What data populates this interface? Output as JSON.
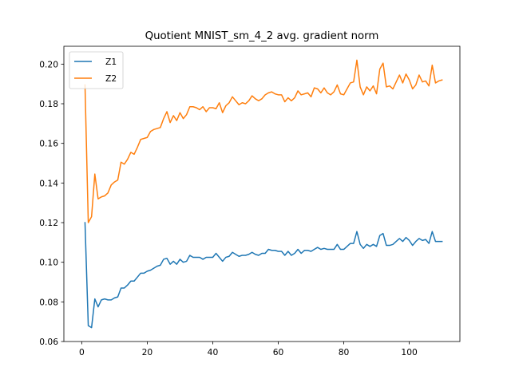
{
  "chart_data": {
    "type": "line",
    "title": "Quotient MNIST_sm_4_2 avg. gradient norm",
    "xlabel": "",
    "ylabel": "",
    "xlim": [
      -5.45,
      115.45
    ],
    "ylim": [
      0.06,
      0.209
    ],
    "xticks": [
      0,
      20,
      40,
      60,
      80,
      100
    ],
    "yticks": [
      0.06,
      0.08,
      0.1,
      0.12,
      0.14,
      0.16,
      0.18,
      0.2
    ],
    "ytick_labels": [
      "0.06",
      "0.08",
      "0.10",
      "0.12",
      "0.14",
      "0.16",
      "0.18",
      "0.20"
    ],
    "grid": false,
    "legend_position": "top-left",
    "x": [
      1,
      2,
      3,
      4,
      5,
      6,
      7,
      8,
      9,
      10,
      11,
      12,
      13,
      14,
      15,
      16,
      17,
      18,
      19,
      20,
      21,
      22,
      23,
      24,
      25,
      26,
      27,
      28,
      29,
      30,
      31,
      32,
      33,
      34,
      35,
      36,
      37,
      38,
      39,
      40,
      41,
      42,
      43,
      44,
      45,
      46,
      47,
      48,
      49,
      50,
      51,
      52,
      53,
      54,
      55,
      56,
      57,
      58,
      59,
      60,
      61,
      62,
      63,
      64,
      65,
      66,
      67,
      68,
      69,
      70,
      71,
      72,
      73,
      74,
      75,
      76,
      77,
      78,
      79,
      80,
      81,
      82,
      83,
      84,
      85,
      86,
      87,
      88,
      89,
      90,
      91,
      92,
      93,
      94,
      95,
      96,
      97,
      98,
      99,
      100,
      101,
      102,
      103,
      104,
      105,
      106,
      107,
      108,
      109,
      110
    ],
    "series": [
      {
        "name": "Z1",
        "color": "#1f77b4",
        "values": [
          0.12,
          0.068,
          0.067,
          0.0815,
          0.0775,
          0.081,
          0.0815,
          0.081,
          0.081,
          0.082,
          0.0825,
          0.087,
          0.087,
          0.0885,
          0.0905,
          0.0905,
          0.0925,
          0.0945,
          0.0945,
          0.0955,
          0.096,
          0.097,
          0.098,
          0.0985,
          0.1015,
          0.102,
          0.099,
          0.1005,
          0.099,
          0.1015,
          0.1,
          0.1005,
          0.1035,
          0.1025,
          0.1025,
          0.1025,
          0.1015,
          0.1025,
          0.1025,
          0.1025,
          0.1045,
          0.1025,
          0.1005,
          0.1025,
          0.103,
          0.105,
          0.104,
          0.103,
          0.1035,
          0.1035,
          0.104,
          0.105,
          0.104,
          0.1035,
          0.1045,
          0.1045,
          0.1065,
          0.106,
          0.106,
          0.1055,
          0.1055,
          0.1035,
          0.1055,
          0.1035,
          0.1045,
          0.1065,
          0.1045,
          0.106,
          0.106,
          0.1055,
          0.1065,
          0.1075,
          0.1065,
          0.107,
          0.1065,
          0.1065,
          0.1065,
          0.109,
          0.1065,
          0.1065,
          0.108,
          0.1095,
          0.1095,
          0.1155,
          0.109,
          0.107,
          0.109,
          0.108,
          0.109,
          0.108,
          0.1135,
          0.1145,
          0.1085,
          0.1085,
          0.109,
          0.1105,
          0.112,
          0.1105,
          0.1125,
          0.111,
          0.1085,
          0.1105,
          0.112,
          0.111,
          0.1115,
          0.1095,
          0.1155,
          0.1105,
          0.1105,
          0.1105
        ]
      },
      {
        "name": "Z2",
        "color": "#ff7f0e",
        "values": [
          0.1895,
          0.12,
          0.123,
          0.1445,
          0.132,
          0.133,
          0.1335,
          0.135,
          0.139,
          0.1405,
          0.1415,
          0.1505,
          0.1495,
          0.152,
          0.1555,
          0.1545,
          0.158,
          0.162,
          0.1625,
          0.163,
          0.166,
          0.167,
          0.1675,
          0.168,
          0.1725,
          0.176,
          0.1705,
          0.174,
          0.1715,
          0.1755,
          0.1725,
          0.1745,
          0.1785,
          0.1785,
          0.178,
          0.177,
          0.1785,
          0.176,
          0.178,
          0.178,
          0.1775,
          0.1805,
          0.1755,
          0.179,
          0.1805,
          0.1835,
          0.1815,
          0.1795,
          0.1805,
          0.18,
          0.1815,
          0.184,
          0.1825,
          0.1815,
          0.1825,
          0.1845,
          0.1855,
          0.186,
          0.185,
          0.1845,
          0.1845,
          0.181,
          0.183,
          0.1815,
          0.183,
          0.1865,
          0.1845,
          0.185,
          0.1855,
          0.1835,
          0.188,
          0.1875,
          0.1855,
          0.188,
          0.1855,
          0.1845,
          0.186,
          0.1895,
          0.185,
          0.1845,
          0.1875,
          0.1905,
          0.191,
          0.202,
          0.1885,
          0.1845,
          0.1885,
          0.1865,
          0.189,
          0.185,
          0.1975,
          0.2005,
          0.1885,
          0.189,
          0.1875,
          0.191,
          0.1945,
          0.1905,
          0.195,
          0.192,
          0.1875,
          0.1895,
          0.1945,
          0.191,
          0.1915,
          0.189,
          0.1995,
          0.1905,
          0.1915,
          0.192
        ]
      }
    ]
  }
}
